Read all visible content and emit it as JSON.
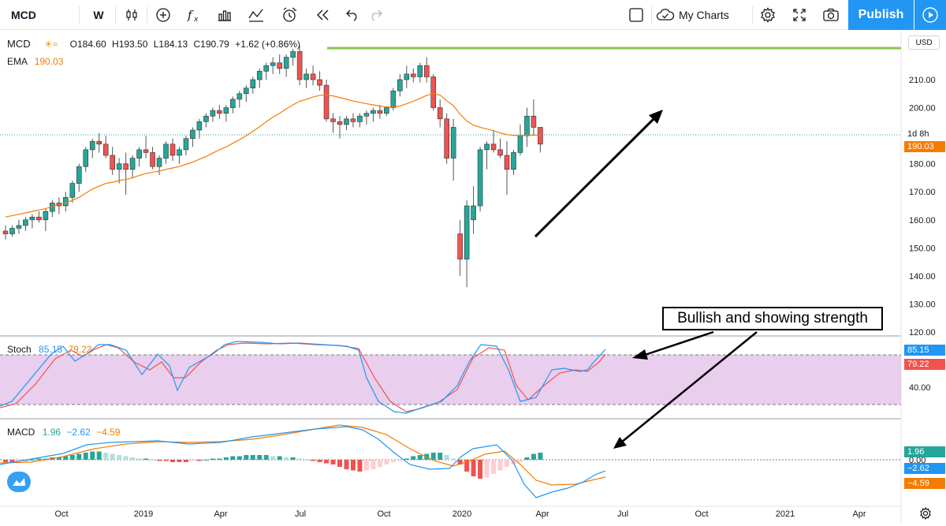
{
  "toolbar": {
    "symbol": "MCD",
    "interval": "W",
    "my_charts": "My Charts",
    "publish": "Publish"
  },
  "legend": {
    "symbol": "MCD",
    "open": "O184.60",
    "high": "H193.50",
    "low": "L184.13",
    "close": "C190.79",
    "change": "+1.62 (+0.86%)",
    "ema_label": "EMA",
    "ema_value": "190.03",
    "stoch_label": "Stoch",
    "stoch_k": "85.15",
    "stoch_d": "79.22",
    "macd_label": "MACD",
    "macd_hist": "1.96",
    "macd_line": "−2.62",
    "macd_signal": "−4.59"
  },
  "price_axis": {
    "currency": "USD",
    "ticks": [
      "210.00",
      "200.00",
      "190.00",
      "180.00",
      "170.00",
      "160.00",
      "150.00",
      "140.00",
      "130.00",
      "120.00"
    ],
    "countdown": "1d 8h",
    "ema_badge": "190.03"
  },
  "stoch_axis": {
    "ticks": [
      "40.00"
    ],
    "k_badge": "85.15",
    "d_badge": "79.22"
  },
  "macd_axis": {
    "ticks": [
      "0.00"
    ],
    "hist_badge": "1.96",
    "line_badge": "−2.62",
    "signal_badge": "−4.59"
  },
  "time_axis": [
    "Oct",
    "2019",
    "Apr",
    "Jul",
    "Oct",
    "2020",
    "Apr",
    "Jul",
    "Oct",
    "2021",
    "Apr"
  ],
  "annotation": "Bullish and showing strength",
  "colors": {
    "up": "#26a69a",
    "down": "#ef5350",
    "ema": "#f57c00",
    "stoch_k": "#2196f3",
    "stoch_d": "#ef5350",
    "band": "#e1bee7",
    "accent": "#2196f3",
    "resistance": "#8bc34a"
  },
  "icons": [
    "bar-style-icon",
    "add-indicator-icon",
    "fx-icon",
    "templates-icon",
    "line-tools-icon",
    "alert-icon",
    "replay-icon",
    "undo-icon",
    "redo-icon",
    "square-icon",
    "cloud-icon",
    "settings-icon",
    "fullscreen-icon",
    "camera-icon",
    "play-icon",
    "settings-gear-icon",
    "logo-icon"
  ]
}
